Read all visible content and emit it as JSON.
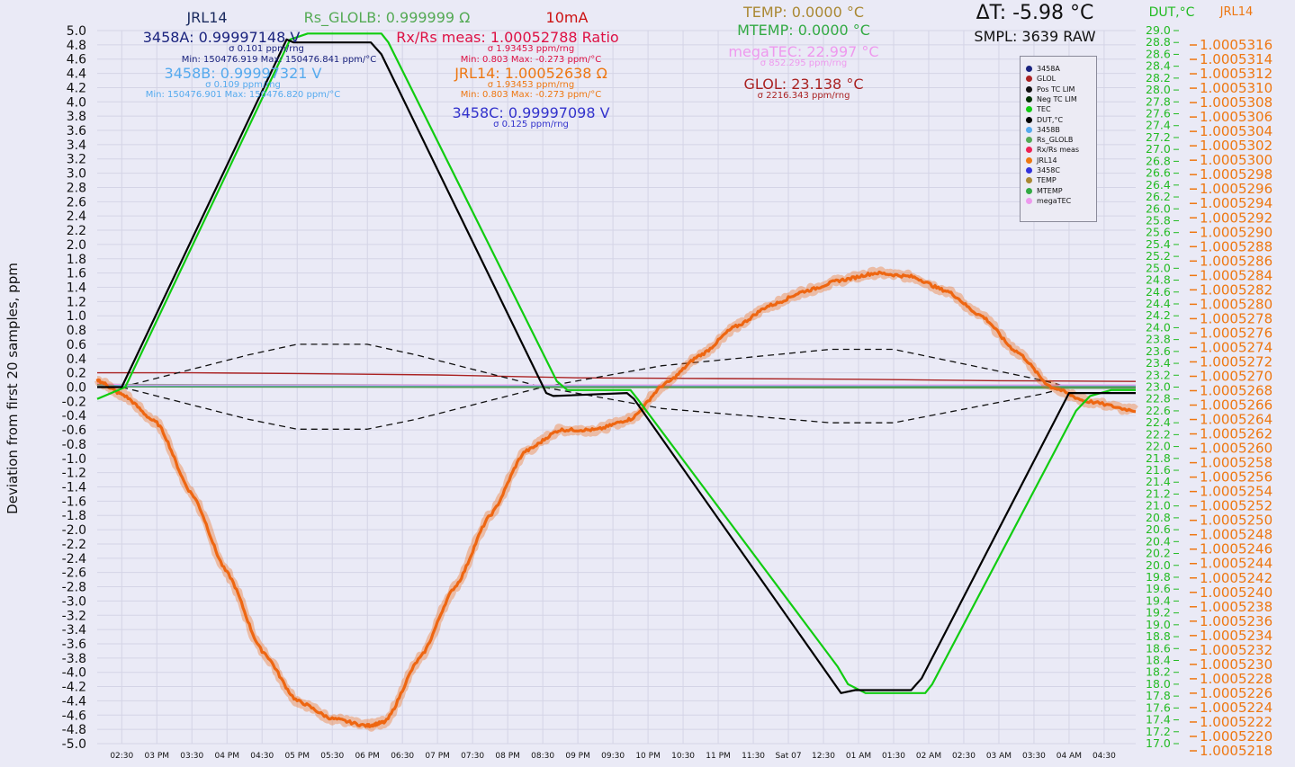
{
  "chart_data": {
    "type": "line",
    "ylabel": "Deviation from first 20 samples, ppm",
    "ylim": [
      -5.0,
      5.0
    ],
    "y_ticks": [
      "5.0",
      "4.8",
      "4.6",
      "4.4",
      "4.2",
      "4.0",
      "3.8",
      "3.6",
      "3.4",
      "3.2",
      "3.0",
      "2.8",
      "2.6",
      "2.4",
      "2.2",
      "2.0",
      "1.8",
      "1.6",
      "1.4",
      "1.2",
      "1.0",
      "0.8",
      "0.6",
      "0.4",
      "0.2",
      "0.0",
      "-0.2",
      "-0.4",
      "-0.6",
      "-0.8",
      "-1.0",
      "-1.2",
      "-1.4",
      "-1.6",
      "-1.8",
      "-2.0",
      "-2.2",
      "-2.4",
      "-2.6",
      "-2.8",
      "-3.0",
      "-3.2",
      "-3.4",
      "-3.6",
      "-3.8",
      "-4.0",
      "-4.2",
      "-4.4",
      "-4.6",
      "-4.8",
      "-5.0"
    ],
    "x_hours_range": [
      14.15,
      28.95
    ],
    "x_ticks": [
      {
        "label": "02:30",
        "h": 14.5
      },
      {
        "label": "03 PM",
        "h": 15.0
      },
      {
        "label": "03:30",
        "h": 15.5
      },
      {
        "label": "04 PM",
        "h": 16.0
      },
      {
        "label": "04:30",
        "h": 16.5
      },
      {
        "label": "05 PM",
        "h": 17.0
      },
      {
        "label": "05:30",
        "h": 17.5
      },
      {
        "label": "06 PM",
        "h": 18.0
      },
      {
        "label": "06:30",
        "h": 18.5
      },
      {
        "label": "07 PM",
        "h": 19.0
      },
      {
        "label": "07:30",
        "h": 19.5
      },
      {
        "label": "08 PM",
        "h": 20.0
      },
      {
        "label": "08:30",
        "h": 20.5
      },
      {
        "label": "09 PM",
        "h": 21.0
      },
      {
        "label": "09:30",
        "h": 21.5
      },
      {
        "label": "10 PM",
        "h": 22.0
      },
      {
        "label": "10:30",
        "h": 22.5
      },
      {
        "label": "11 PM",
        "h": 23.0
      },
      {
        "label": "11:30",
        "h": 23.5
      },
      {
        "label": "Sat 07",
        "h": 24.0
      },
      {
        "label": "12:30",
        "h": 24.5
      },
      {
        "label": "01 AM",
        "h": 25.0
      },
      {
        "label": "01:30",
        "h": 25.5
      },
      {
        "label": "02 AM",
        "h": 26.0
      },
      {
        "label": "02:30",
        "h": 26.5
      },
      {
        "label": "03 AM",
        "h": 27.0
      },
      {
        "label": "03:30",
        "h": 27.5
      },
      {
        "label": "04 AM",
        "h": 28.0
      },
      {
        "label": "04:30",
        "h": 28.5
      }
    ],
    "y2": {
      "label": "DUT,°C",
      "color": "#22bb22",
      "range": [
        17.0,
        29.0
      ],
      "ticks": [
        "29.0",
        "28.8",
        "28.6",
        "28.4",
        "28.2",
        "28.0",
        "27.8",
        "27.6",
        "27.4",
        "27.2",
        "27.0",
        "26.8",
        "26.6",
        "26.4",
        "26.2",
        "26.0",
        "25.8",
        "25.6",
        "25.4",
        "25.2",
        "25.0",
        "24.8",
        "24.6",
        "24.4",
        "24.2",
        "24.0",
        "23.8",
        "23.6",
        "23.4",
        "23.2",
        "23.0",
        "22.8",
        "22.6",
        "22.4",
        "22.2",
        "22.0",
        "21.8",
        "21.6",
        "21.4",
        "21.2",
        "21.0",
        "20.8",
        "20.6",
        "20.4",
        "20.2",
        "20.0",
        "19.8",
        "19.6",
        "19.4",
        "19.2",
        "19.0",
        "18.8",
        "18.6",
        "18.4",
        "18.2",
        "18.0",
        "17.8",
        "17.6",
        "17.4",
        "17.2",
        "17.0"
      ]
    },
    "y3": {
      "label": "JRL14",
      "color": "#ee7711",
      "range": [
        1.0005218,
        1.0005317
      ],
      "ticks": [
        "1.0005316",
        "1.0005314",
        "1.0005312",
        "1.0005310",
        "1.0005308",
        "1.0005306",
        "1.0005304",
        "1.0005302",
        "1.0005300",
        "1.0005298",
        "1.0005296",
        "1.0005294",
        "1.0005292",
        "1.0005290",
        "1.0005288",
        "1.0005286",
        "1.0005284",
        "1.0005282",
        "1.0005280",
        "1.0005278",
        "1.0005276",
        "1.0005274",
        "1.0005272",
        "1.0005270",
        "1.0005268",
        "1.0005266",
        "1.0005264",
        "1.0005262",
        "1.0005260",
        "1.0005258",
        "1.0005256",
        "1.0005254",
        "1.0005252",
        "1.0005250",
        "1.0005248",
        "1.0005246",
        "1.0005244",
        "1.0005242",
        "1.0005240",
        "1.0005238",
        "1.0005236",
        "1.0005234",
        "1.0005232",
        "1.0005230",
        "1.0005228",
        "1.0005226",
        "1.0005224",
        "1.0005222",
        "1.0005220",
        "1.0005218"
      ]
    },
    "series": [
      {
        "name": "DUT,°C",
        "axis": "y2",
        "color": "#000000",
        "width": 2.2,
        "points": [
          [
            14.15,
            23.0
          ],
          [
            14.5,
            23.0
          ],
          [
            16.85,
            28.85
          ],
          [
            16.95,
            28.8
          ],
          [
            18.05,
            28.8
          ],
          [
            18.2,
            28.6
          ],
          [
            20.55,
            22.9
          ],
          [
            20.65,
            22.85
          ],
          [
            21.7,
            22.9
          ],
          [
            21.8,
            22.8
          ],
          [
            24.75,
            17.85
          ],
          [
            24.95,
            17.9
          ],
          [
            25.75,
            17.9
          ],
          [
            25.9,
            18.1
          ],
          [
            28.0,
            22.9
          ],
          [
            28.1,
            22.9
          ],
          [
            28.95,
            22.9
          ]
        ]
      },
      {
        "name": "TEC",
        "axis": "y2",
        "color": "#11cc11",
        "width": 2.2,
        "points": [
          [
            14.15,
            22.8
          ],
          [
            14.35,
            22.9
          ],
          [
            14.55,
            23.0
          ],
          [
            16.9,
            28.85
          ],
          [
            17.15,
            28.95
          ],
          [
            18.2,
            28.95
          ],
          [
            18.3,
            28.8
          ],
          [
            20.7,
            23.1
          ],
          [
            20.85,
            22.95
          ],
          [
            21.75,
            22.95
          ],
          [
            21.85,
            22.8
          ],
          [
            24.7,
            18.3
          ],
          [
            24.85,
            18.0
          ],
          [
            25.1,
            17.85
          ],
          [
            25.95,
            17.85
          ],
          [
            26.05,
            18.0
          ],
          [
            28.1,
            22.6
          ],
          [
            28.3,
            22.85
          ],
          [
            28.6,
            22.95
          ],
          [
            28.95,
            22.95
          ]
        ]
      },
      {
        "name": "Pos TC LIM",
        "axis": "y",
        "color": "#111111",
        "dash": true,
        "points": [
          [
            14.5,
            0.0
          ],
          [
            16.3,
            0.45
          ],
          [
            17.0,
            0.6
          ],
          [
            18.0,
            0.6
          ],
          [
            18.7,
            0.45
          ],
          [
            20.5,
            0.0
          ],
          [
            22.2,
            0.3
          ],
          [
            24.6,
            0.53
          ],
          [
            25.5,
            0.53
          ],
          [
            27.6,
            0.1
          ],
          [
            28.0,
            0.0
          ]
        ]
      },
      {
        "name": "Neg TC LIM",
        "axis": "y",
        "color": "#111111",
        "dash": true,
        "points": [
          [
            14.5,
            0.0
          ],
          [
            16.3,
            -0.45
          ],
          [
            17.0,
            -0.59
          ],
          [
            18.0,
            -0.59
          ],
          [
            18.7,
            -0.45
          ],
          [
            20.5,
            0.0
          ],
          [
            22.2,
            -0.3
          ],
          [
            24.6,
            -0.5
          ],
          [
            25.5,
            -0.5
          ],
          [
            27.6,
            -0.1
          ],
          [
            28.0,
            0.0
          ]
        ]
      },
      {
        "name": "GLOL",
        "axis": "y",
        "color": "#aa2222",
        "width": 1.4,
        "points": [
          [
            14.15,
            0.2
          ],
          [
            15.5,
            0.2
          ],
          [
            17.0,
            0.19
          ],
          [
            19.0,
            0.17
          ],
          [
            21.0,
            0.13
          ],
          [
            23.0,
            0.12
          ],
          [
            25.0,
            0.11
          ],
          [
            27.0,
            0.09
          ],
          [
            28.95,
            0.08
          ]
        ]
      },
      {
        "name": "Rs_GLOLB",
        "axis": "y",
        "color": "#559955",
        "width": 4,
        "points": [
          [
            14.15,
            0.02
          ],
          [
            28.95,
            0.0
          ]
        ]
      },
      {
        "name": "3458B",
        "axis": "y",
        "color": "#66bbee",
        "width": 1.2,
        "points": [
          [
            14.15,
            0.02
          ],
          [
            28.95,
            0.02
          ]
        ]
      },
      {
        "name": "megaTEC",
        "axis": "y",
        "color": "#ee99ee",
        "width": 1.2,
        "points": [
          [
            14.15,
            0.05
          ],
          [
            14.6,
            0.03
          ],
          [
            28.95,
            0.03
          ]
        ]
      },
      {
        "name": "JRL14",
        "axis": "y",
        "color": "#ee6611",
        "width": 3.2,
        "noisy": true,
        "points": [
          [
            14.15,
            0.1
          ],
          [
            14.5,
            -0.1
          ],
          [
            15.0,
            -0.5
          ],
          [
            15.5,
            -1.5
          ],
          [
            16.0,
            -2.6
          ],
          [
            16.5,
            -3.7
          ],
          [
            17.0,
            -4.4
          ],
          [
            17.5,
            -4.65
          ],
          [
            18.0,
            -4.75
          ],
          [
            18.25,
            -4.7
          ],
          [
            18.75,
            -3.8
          ],
          [
            19.25,
            -2.8
          ],
          [
            19.75,
            -1.8
          ],
          [
            20.25,
            -0.9
          ],
          [
            20.75,
            -0.6
          ],
          [
            21.25,
            -0.6
          ],
          [
            21.75,
            -0.45
          ],
          [
            22.25,
            0.05
          ],
          [
            22.75,
            0.45
          ],
          [
            23.25,
            0.85
          ],
          [
            23.75,
            1.15
          ],
          [
            24.25,
            1.35
          ],
          [
            24.75,
            1.5
          ],
          [
            25.25,
            1.6
          ],
          [
            25.75,
            1.55
          ],
          [
            26.25,
            1.35
          ],
          [
            26.75,
            1.0
          ],
          [
            27.25,
            0.5
          ],
          [
            27.75,
            0.0
          ],
          [
            28.25,
            -0.2
          ],
          [
            28.95,
            -0.33
          ]
        ]
      }
    ],
    "legend": [
      {
        "name": "3458A",
        "color": "#1a237e"
      },
      {
        "name": "GLOL",
        "color": "#aa2222"
      },
      {
        "name": "Pos TC LIM",
        "color": "#111111"
      },
      {
        "name": "Neg TC LIM",
        "color": "#003300"
      },
      {
        "name": "TEC",
        "color": "#11cc11"
      },
      {
        "name": "DUT,°C",
        "color": "#000000"
      },
      {
        "name": "3458B",
        "color": "#55aaee"
      },
      {
        "name": "Rs_GLOLB",
        "color": "#55aa55"
      },
      {
        "name": "Rx/Rs meas",
        "color": "#ee2255"
      },
      {
        "name": "JRL14",
        "color": "#ee7711"
      },
      {
        "name": "3458C",
        "color": "#3333dd"
      },
      {
        "name": "TEMP",
        "color": "#aa8833"
      },
      {
        "name": "MTEMP",
        "color": "#33aa44"
      },
      {
        "name": "megaTEC",
        "color": "#ee99ee"
      }
    ]
  },
  "annotations": {
    "jrl14_title": "JRL14",
    "rs_glolb": "Rs_GLOLB: 0.999999 Ω",
    "current": "10mA",
    "a3458a": "3458A: 0.99997148 V",
    "a3458a_sigma": "σ 0.101 ppm/rng",
    "a3458a_minmax": "Min: 150476.919 Max: 150476.841 ppm/°C",
    "a3458b": "3458B: 0.99997321 V",
    "a3458b_sigma": "σ 0.109 ppm/rng",
    "a3458b_minmax": "Min: 150476.901 Max: 150476.820 ppm/°C",
    "rxrs": "Rx/Rs meas: 1.00052788 Ratio",
    "rxrs_sigma": "σ 1.93453 ppm/rng",
    "rxrs_minmax": "Min: 0.803 Max: -0.273 ppm/°C",
    "jrl14_val": "JRL14: 1.00052638 Ω",
    "jrl14_sigma": "σ 1.93453 ppm/rng",
    "jrl14_minmax": "Min: 0.803 Max: -0.273 ppm/°C",
    "a3458c": "3458C: 0.99997098 V",
    "a3458c_sigma": "σ 0.125 ppm/rng",
    "temp": "TEMP: 0.0000 °C",
    "mtemp": "MTEMP: 0.0000 °C",
    "megatec": "megaTEC: 22.997 °C",
    "megatec_sigma": "σ 852.295 ppm/rng",
    "glol": "GLOL: 23.138 °C",
    "glol_sigma": "σ 2216.343 ppm/rng",
    "delta_t": "ΔT: -5.98 °C",
    "smpl": "SMPL: 3639 RAW",
    "y2_title": "DUT,°C",
    "y3_title": "JRL14"
  }
}
